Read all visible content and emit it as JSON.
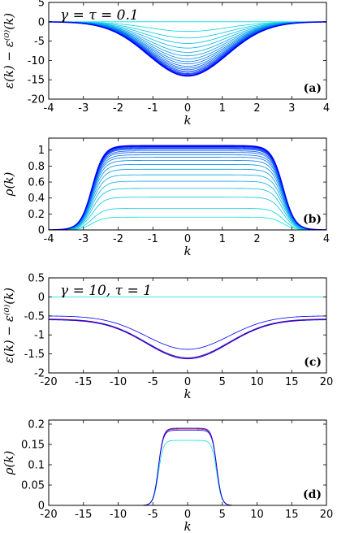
{
  "colors": {
    "light": "#00e0e0",
    "dark": "#0000ff",
    "red": "#cc0000",
    "frame": "#000000"
  },
  "chart_data": [
    {
      "id": "a",
      "type": "line",
      "panel_label": "(a)",
      "annotation": "γ = τ = 0.1",
      "xlabel": "k",
      "ylabel": "ε(k) − ε⁽⁰⁾(k)",
      "xlim": [
        -4,
        4
      ],
      "ylim": [
        -20,
        5
      ],
      "xticks": [
        -4,
        -3,
        -2,
        -1,
        0,
        1,
        2,
        3,
        4
      ],
      "xticklabels": [
        "-4",
        "-3",
        "-2",
        "-1",
        "0",
        "1",
        "2",
        "3",
        "4"
      ],
      "yticks": [
        -20,
        -15,
        -10,
        -5,
        0,
        5
      ],
      "yticklabels": [
        "-20",
        "-15",
        "-10",
        "-5",
        "0",
        "5"
      ],
      "series": [
        {
          "depth": 0.0
        },
        {
          "depth": 2.5
        },
        {
          "depth": 4.2
        },
        {
          "depth": 5.6
        },
        {
          "depth": 6.8
        },
        {
          "depth": 7.9
        },
        {
          "depth": 8.8
        },
        {
          "depth": 9.6
        },
        {
          "depth": 10.3
        },
        {
          "depth": 10.9
        },
        {
          "depth": 11.5
        },
        {
          "depth": 12.0
        },
        {
          "depth": 12.4
        },
        {
          "depth": 12.8
        },
        {
          "depth": 13.1
        },
        {
          "depth": 13.4
        },
        {
          "depth": 13.6
        },
        {
          "depth": 13.8
        },
        {
          "depth": 13.9
        },
        {
          "depth": 14.0
        }
      ]
    },
    {
      "id": "b",
      "type": "line",
      "panel_label": "(b)",
      "xlabel": "k",
      "ylabel": "ρ(k)",
      "xlim": [
        -4,
        4
      ],
      "ylim": [
        0,
        1.15
      ],
      "xticks": [
        -4,
        -3,
        -2,
        -1,
        0,
        1,
        2,
        3,
        4
      ],
      "xticklabels": [
        "-4",
        "-3",
        "-2",
        "-1",
        "0",
        "1",
        "2",
        "3",
        "4"
      ],
      "yticks": [
        0,
        0.2,
        0.4,
        0.6,
        0.8,
        1
      ],
      "yticklabels": [
        "0",
        "0.2",
        "0.4",
        "0.6",
        "0.8",
        "1"
      ],
      "series": [
        {
          "plateau": 0.16
        },
        {
          "plateau": 0.27
        },
        {
          "plateau": 0.41
        },
        {
          "plateau": 0.52
        },
        {
          "plateau": 0.61
        },
        {
          "plateau": 0.69
        },
        {
          "plateau": 0.76
        },
        {
          "plateau": 0.82
        },
        {
          "plateau": 0.87
        },
        {
          "plateau": 0.91
        },
        {
          "plateau": 0.94
        },
        {
          "plateau": 0.97
        },
        {
          "plateau": 0.99
        },
        {
          "plateau": 1.01
        },
        {
          "plateau": 1.02
        },
        {
          "plateau": 1.03
        },
        {
          "plateau": 1.04
        },
        {
          "plateau": 1.045
        },
        {
          "plateau": 1.05
        },
        {
          "plateau": 1.055
        }
      ]
    },
    {
      "id": "c",
      "type": "line",
      "panel_label": "(c)",
      "annotation": "γ = 10, τ = 1",
      "xlabel": "k",
      "ylabel": "ε(k) − ε⁽⁰⁾(k)",
      "xlim": [
        -20,
        20
      ],
      "ylim": [
        -2,
        0.5
      ],
      "xticks": [
        -20,
        -15,
        -10,
        -5,
        0,
        5,
        10,
        15,
        20
      ],
      "xticklabels": [
        "-20",
        "-15",
        "-10",
        "-5",
        "0",
        "5",
        "10",
        "15",
        "20"
      ],
      "yticks": [
        -2,
        -1.5,
        -1,
        -0.5,
        0,
        0.5
      ],
      "yticklabels": [
        "-2",
        "-1.5",
        "-1",
        "-0.5",
        "0",
        "0.5"
      ],
      "series": [
        {
          "min": 0.0,
          "edge": 0.0,
          "color": "light"
        },
        {
          "min": -1.38,
          "edge": -0.5,
          "color": "dark"
        },
        {
          "min": -1.6,
          "edge": -0.58,
          "color": "dark"
        },
        {
          "min": -1.62,
          "edge": -0.59,
          "color": "red"
        },
        {
          "min": -1.63,
          "edge": -0.6,
          "color": "dark"
        }
      ]
    },
    {
      "id": "d",
      "type": "line",
      "panel_label": "(d)",
      "xlabel": "k",
      "ylabel": "ρ(k)",
      "xlim": [
        -20,
        20
      ],
      "ylim": [
        0,
        0.21
      ],
      "xticks": [
        -20,
        -15,
        -10,
        -5,
        0,
        5,
        10,
        15,
        20
      ],
      "xticklabels": [
        "-20",
        "-15",
        "-10",
        "-5",
        "0",
        "5",
        "10",
        "15",
        "20"
      ],
      "yticks": [
        0,
        0.05,
        0.1,
        0.15,
        0.2
      ],
      "yticklabels": [
        "0",
        "0.05",
        "0.1",
        "0.15",
        "0.2"
      ],
      "series": [
        {
          "plateau": 0.16,
          "color": "light"
        },
        {
          "plateau": 0.185,
          "color": "dark"
        },
        {
          "plateau": 0.188,
          "color": "red"
        },
        {
          "plateau": 0.19,
          "color": "dark"
        }
      ]
    }
  ]
}
